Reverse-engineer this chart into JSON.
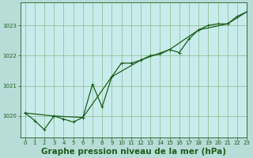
{
  "title": "Graphe pression niveau de la mer (hPa)",
  "background_color": "#b8dcd8",
  "plot_bg_color": "#c8ecec",
  "line_color": "#1a5e1a",
  "grid_color": "#88bb88",
  "xlim": [
    -0.5,
    23
  ],
  "ylim": [
    1019.3,
    1023.75
  ],
  "xticks": [
    0,
    1,
    2,
    3,
    4,
    5,
    6,
    7,
    8,
    9,
    10,
    11,
    12,
    13,
    14,
    15,
    16,
    17,
    18,
    19,
    20,
    21,
    22,
    23
  ],
  "yticks": [
    1020,
    1021,
    1022,
    1023
  ],
  "line1_x": [
    0,
    1,
    2,
    3,
    4,
    5,
    6,
    7,
    8,
    9,
    10,
    11,
    12,
    13,
    14,
    15,
    16,
    17,
    18,
    19,
    20,
    21,
    22,
    23
  ],
  "line1_y": [
    1020.1,
    1019.85,
    1019.55,
    1020.0,
    1019.9,
    1019.8,
    1019.95,
    1021.05,
    1020.3,
    1021.3,
    1021.75,
    1021.75,
    1021.85,
    1022.0,
    1022.05,
    1022.2,
    1022.1,
    1022.55,
    1022.85,
    1023.0,
    1023.05,
    1023.05,
    1023.3,
    1023.45
  ],
  "line2_x": [
    0,
    3,
    6,
    9,
    12,
    15,
    18,
    21,
    23
  ],
  "line2_y": [
    1020.1,
    1020.0,
    1019.95,
    1021.3,
    1021.85,
    1022.2,
    1022.85,
    1023.05,
    1023.45
  ],
  "marker_size": 2.5,
  "line_width": 0.9,
  "title_fontsize": 7.0,
  "tick_fontsize": 5.0,
  "xlabel_fontsize": 7.5
}
